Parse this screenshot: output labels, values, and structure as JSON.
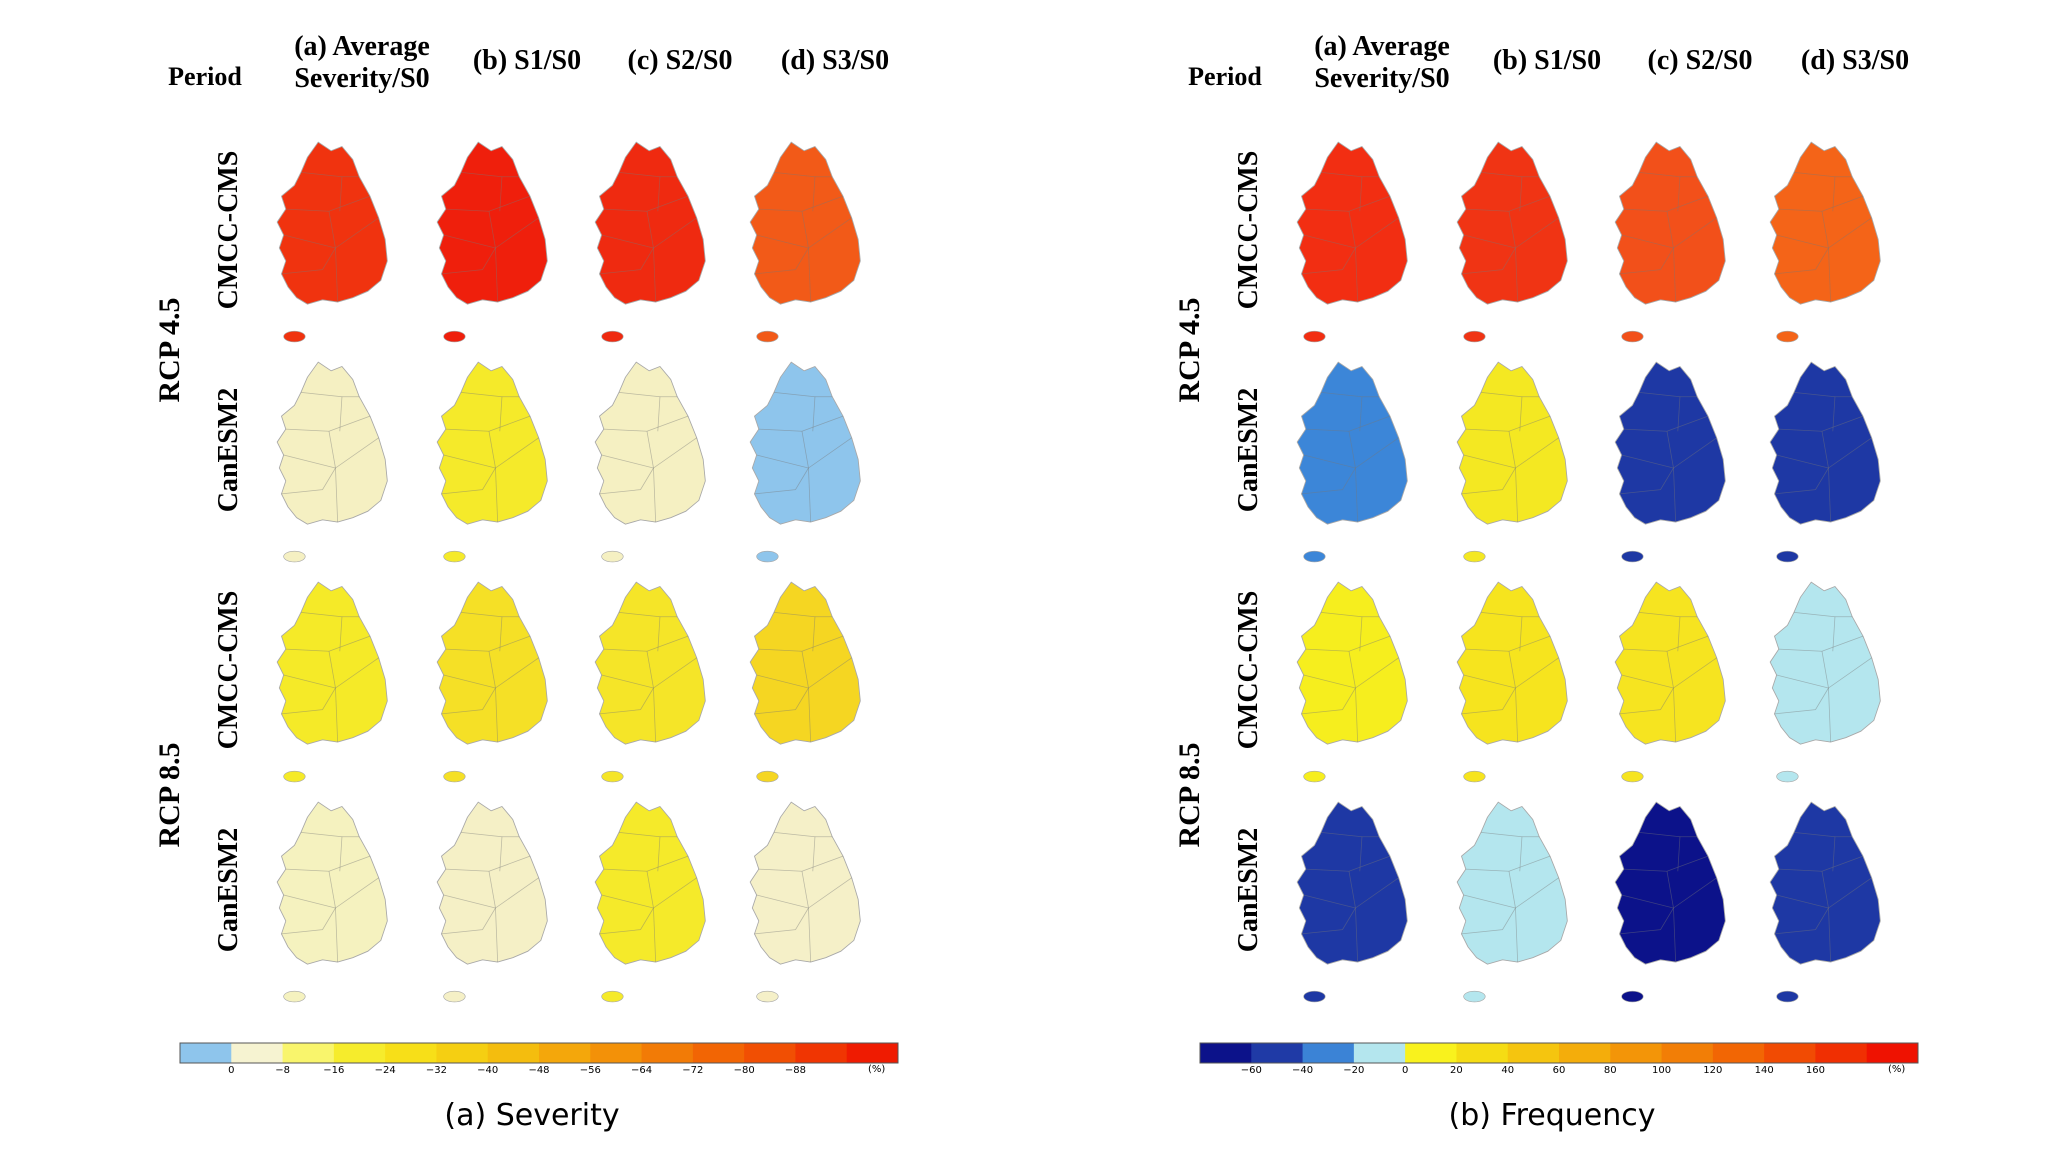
{
  "columns": [
    {
      "line1": "(a) Average",
      "line2": "Severity/S0"
    },
    {
      "line1": "(b) S1/S0",
      "line2": ""
    },
    {
      "line1": "(c) S2/S0",
      "line2": ""
    },
    {
      "line1": "(d) S3/S0",
      "line2": ""
    }
  ],
  "period_label": "Period",
  "scenarios": [
    "RCP 4.5",
    "RCP 8.5"
  ],
  "models": [
    "CMCC-CMS",
    "CanESM2",
    "CMCC-CMS",
    "CanESM2"
  ],
  "severity": {
    "caption": "(a) Severity",
    "unit": "(%)",
    "colorbar": {
      "colors": [
        "#8ec5ec",
        "#f6f3d1",
        "#f9f56c",
        "#f6ec2c",
        "#f7df18",
        "#f5cf12",
        "#f4bd0e",
        "#f4a70b",
        "#f39108",
        "#f27b06",
        "#f26504",
        "#f14f03",
        "#f03502",
        "#ef1b01"
      ],
      "labels": [
        "0",
        "−8",
        "−16",
        "−24",
        "−32",
        "−40",
        "−48",
        "−56",
        "−64",
        "−72",
        "−80",
        "−88"
      ]
    },
    "maps": [
      [
        "#f0330f",
        "#ef1f0c",
        "#ef2a10",
        "#f25a18"
      ],
      [
        "#f5f0c2",
        "#f5ea2a",
        "#f5f0c2",
        "#8ec5ec"
      ],
      [
        "#f5ea28",
        "#f5e026",
        "#f5e528",
        "#f5d622"
      ],
      [
        "#f5f2bf",
        "#f5f0c6",
        "#f5ea2a",
        "#f5f0c8"
      ]
    ]
  },
  "frequency": {
    "caption": "(b) Frequency",
    "unit": "(%)",
    "colorbar": {
      "colors": [
        "#0c128a",
        "#1f3aa6",
        "#3b83d6",
        "#b4e6ee",
        "#f9f21d",
        "#f5dc14",
        "#f5c50f",
        "#f4ad0b",
        "#f39508",
        "#f27e06",
        "#f26604",
        "#f14b03",
        "#f02f02",
        "#ef1201"
      ],
      "labels": [
        "−60",
        "−40",
        "−20",
        "0",
        "20",
        "40",
        "60",
        "80",
        "100",
        "120",
        "140",
        "160"
      ]
    },
    "maps": [
      [
        "#f22e12",
        "#f03414",
        "#f2501a",
        "#f46418"
      ],
      [
        "#3c86d8",
        "#f4e822",
        "#1e38a4",
        "#1e38a4"
      ],
      [
        "#f6ee1e",
        "#f6e41e",
        "#f6e420",
        "#b4e6ee"
      ],
      [
        "#1e38a4",
        "#b4e6ee",
        "#0c128a",
        "#1e38a4"
      ]
    ]
  }
}
